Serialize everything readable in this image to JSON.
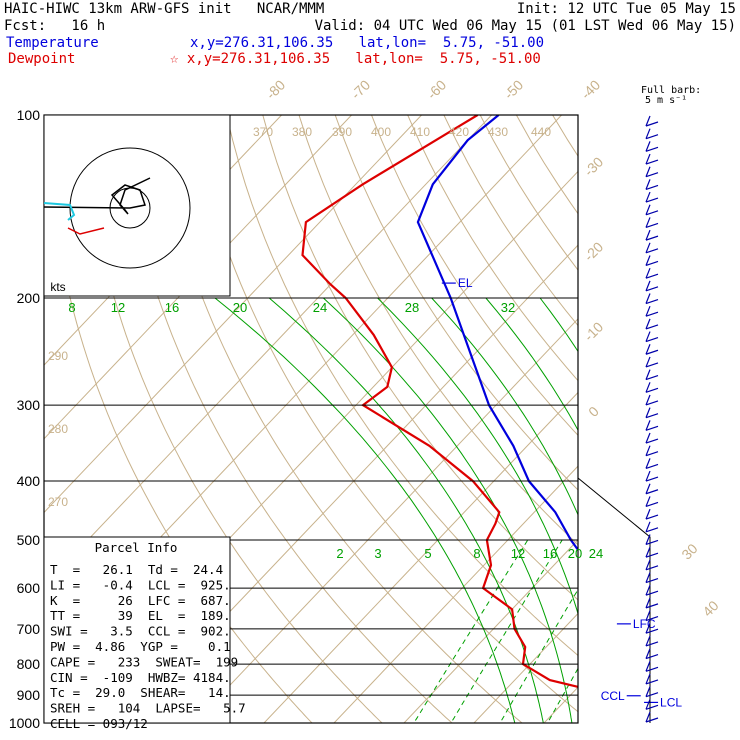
{
  "header": {
    "line1_left": "HAIC-HIWC 13km ARW-GFS init   NCAR/MMM",
    "line1_right": "Init: 12 UTC Tue 05 May 15",
    "line2_left": "Fcst:   16 h",
    "line2_right": "Valid: 04 UTC Wed 06 May 15 (01 LST Wed 06 May 15)",
    "temp_label": "Temperature",
    "temp_loc": "x,y=276.31,106.35   lat,lon=  5.75, -51.00",
    "dew_label": "Dewpoint",
    "dew_loc": "☆ x,y=276.31,106.35   lat,lon=  5.75, -51.00",
    "barb_title": "Full barb:",
    "barb_unit": "5 m s⁻¹"
  },
  "colors": {
    "temperature": "#0000dd",
    "dewpoint": "#dd0000",
    "isotherm": "#c8b28c",
    "mixing_ratio": "#00a000",
    "theta_e": "#c8b28c"
  },
  "chart_data": {
    "type": "skew-t",
    "pressure_levels": [
      100,
      200,
      300,
      400,
      500,
      600,
      700,
      800,
      900,
      1000
    ],
    "isotherm_labels": [
      "-80",
      "-70",
      "-60",
      "-50",
      "-40",
      "-30",
      "-20",
      "-10",
      "0",
      "30",
      "40"
    ],
    "theta_e_top_labels": [
      "370",
      "380",
      "390",
      "400",
      "410",
      "420",
      "430",
      "440"
    ],
    "theta_e_left_labels": [
      "290",
      "280",
      "270"
    ],
    "mixing_ratio_top": [
      "8",
      "12",
      "16",
      "20",
      "24",
      "28",
      "32"
    ],
    "mixing_ratio_low": [
      "2",
      "3",
      "5",
      "8",
      "12",
      "16",
      "20",
      "24"
    ],
    "temperature_profile": [
      [
        100,
        -79
      ],
      [
        110,
        -80
      ],
      [
        130,
        -79
      ],
      [
        150,
        -76
      ],
      [
        200,
        -61
      ],
      [
        250,
        -50
      ],
      [
        300,
        -41
      ],
      [
        350,
        -32
      ],
      [
        400,
        -25
      ],
      [
        450,
        -17
      ],
      [
        500,
        -11
      ],
      [
        550,
        -5
      ],
      [
        600,
        -0.5
      ],
      [
        650,
        4
      ],
      [
        700,
        8
      ],
      [
        750,
        12
      ],
      [
        800,
        16
      ],
      [
        850,
        18
      ],
      [
        900,
        20
      ],
      [
        950,
        23
      ],
      [
        1000,
        26.1
      ]
    ],
    "dewpoint_profile": [
      [
        100,
        -82
      ],
      [
        130,
        -89
      ],
      [
        150,
        -92
      ],
      [
        170,
        -88
      ],
      [
        190,
        -80
      ],
      [
        200,
        -76
      ],
      [
        230,
        -67
      ],
      [
        260,
        -60
      ],
      [
        280,
        -58
      ],
      [
        300,
        -59
      ],
      [
        350,
        -44
      ],
      [
        400,
        -33
      ],
      [
        450,
        -25
      ],
      [
        470,
        -24
      ],
      [
        500,
        -23
      ],
      [
        550,
        -19
      ],
      [
        600,
        -17
      ],
      [
        650,
        -10
      ],
      [
        700,
        -7
      ],
      [
        750,
        -3
      ],
      [
        800,
        -1
      ],
      [
        850,
        5
      ],
      [
        900,
        16
      ],
      [
        930,
        19
      ],
      [
        950,
        21
      ],
      [
        990,
        24
      ],
      [
        1000,
        24.4
      ]
    ],
    "levels_marked": [
      {
        "label": "EL",
        "p": 189
      },
      {
        "label": "LFC",
        "p": 687
      },
      {
        "label": "CCL",
        "p": 902
      },
      {
        "label": "LCL",
        "p": 925
      }
    ],
    "hodograph": {
      "unit": "kts"
    },
    "parcel_info": {
      "title": "Parcel Info",
      "rows": [
        "T  =   26.1  Td =  24.4",
        "LI =   -0.4  LCL =  925.",
        "K  =     26  LFC =  687.",
        "TT =     39  EL  =  189.",
        "SWI =   3.5  CCL =  902.",
        "PW =  4.86  YGP =    0.1",
        "CAPE =   233  SWEAT=  199",
        "CIN =  -109  HWBZ= 4184.",
        "Tc =  29.0  SHEAR=   14.",
        "SREH =   104  LAPSE=   5.7",
        "CELL = 093/12"
      ]
    }
  }
}
